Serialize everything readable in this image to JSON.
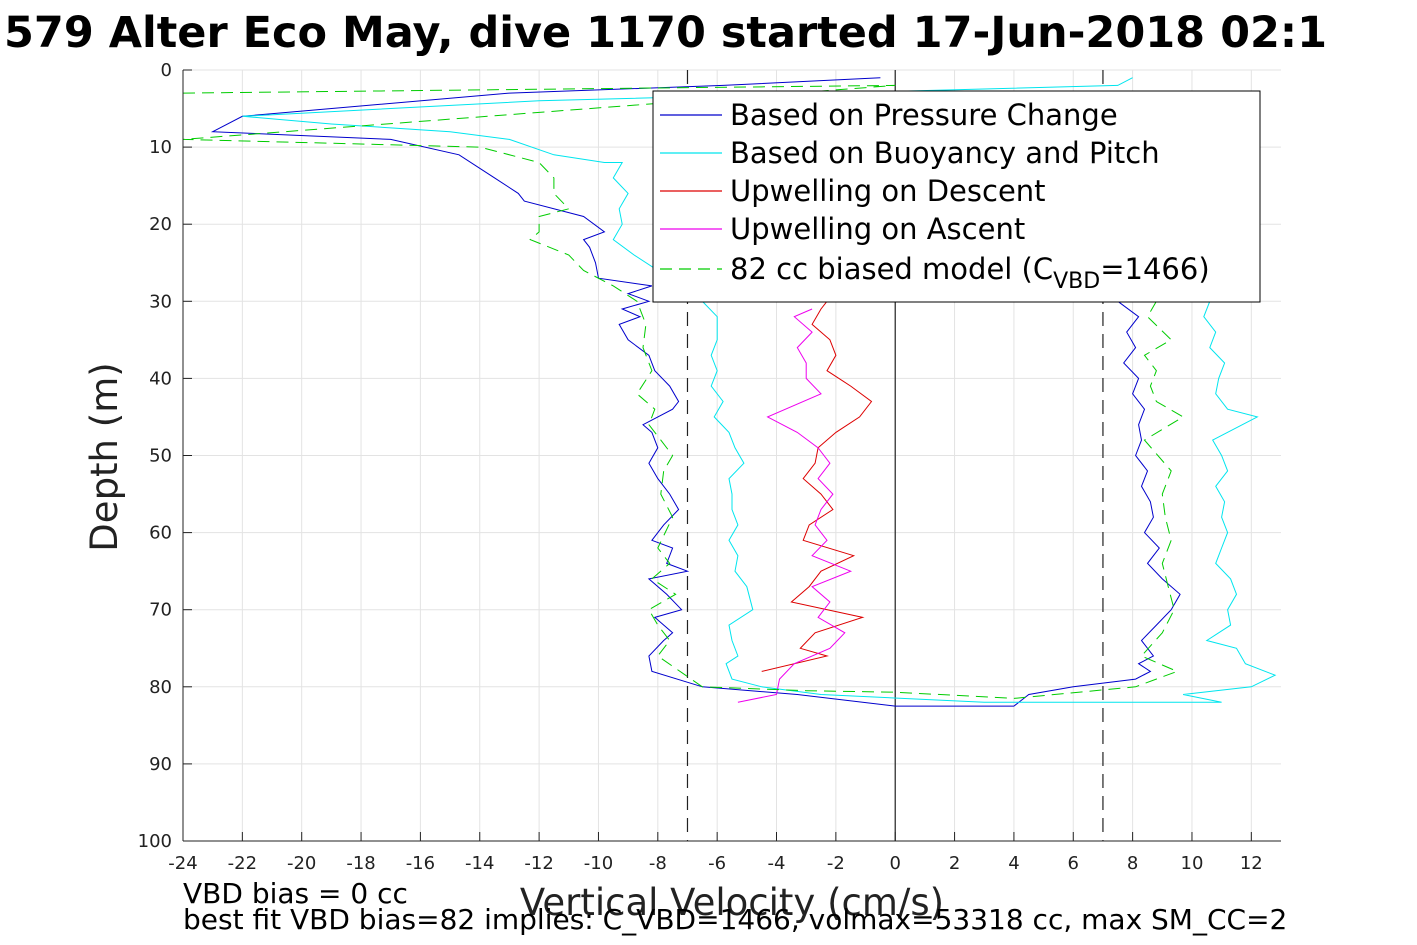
{
  "chart_data": {
    "type": "line",
    "title": "579 Alter Eco May, dive 1170 started 17-Jun-2018 02:1",
    "xlabel": "Vertical Velocity (cm/s)",
    "ylabel": "Depth (m)",
    "xlim": [
      -24,
      13
    ],
    "ylim": [
      0,
      100
    ],
    "y_reversed": true,
    "grid": true,
    "legend_position": "top-right",
    "xticks": [
      "-24",
      "-22",
      "-20",
      "-18",
      "-16",
      "-14",
      "-12",
      "-10",
      "-8",
      "-6",
      "-4",
      "-2",
      "0",
      "2",
      "4",
      "6",
      "8",
      "10",
      "12"
    ],
    "yticks": [
      "0",
      "10",
      "20",
      "30",
      "40",
      "50",
      "60",
      "70",
      "80",
      "90",
      "100"
    ],
    "reference_lines": [
      {
        "x": 0,
        "style": "solid"
      },
      {
        "x": -7,
        "style": "dashed"
      },
      {
        "x": 7,
        "style": "dashed"
      }
    ],
    "legend": {
      "entries": [
        {
          "label": "Based on Pressure Change",
          "color": "#0000cc",
          "style": "solid"
        },
        {
          "label": "Based on Buoyancy and Pitch",
          "color": "#00e5ee",
          "style": "solid"
        },
        {
          "label": "Upwelling on Descent",
          "color": "#dd0000",
          "style": "solid"
        },
        {
          "label": "Upwelling on Ascent",
          "color": "#ee00ee",
          "style": "solid"
        },
        {
          "label_main": "82 cc biased model (C",
          "label_sub": "VBD",
          "label_end": "=1466)",
          "color": "#00cc00",
          "style": "dashed"
        }
      ]
    },
    "series": [
      {
        "name": "Based on Pressure Change",
        "color": "#0000cc",
        "dash": false,
        "points": [
          [
            -0.5,
            1
          ],
          [
            -5.8,
            2
          ],
          [
            -13,
            3
          ],
          [
            -22,
            6
          ],
          [
            -23,
            8
          ],
          [
            -17,
            9
          ],
          [
            -14.7,
            11
          ],
          [
            -13.5,
            14
          ],
          [
            -12.7,
            16
          ],
          [
            -12.5,
            17
          ],
          [
            -10.5,
            19
          ],
          [
            -9.8,
            21
          ],
          [
            -10.5,
            22
          ],
          [
            -10.3,
            23
          ],
          [
            -10.1,
            25
          ],
          [
            -10,
            27
          ],
          [
            -8.2,
            28
          ],
          [
            -9,
            29
          ],
          [
            -8.3,
            30
          ],
          [
            -9.2,
            31
          ],
          [
            -8.6,
            32
          ],
          [
            -9.3,
            33
          ],
          [
            -9,
            35
          ],
          [
            -8.3,
            37
          ],
          [
            -8.1,
            39
          ],
          [
            -7.6,
            41
          ],
          [
            -7.3,
            43
          ],
          [
            -7.5,
            44
          ],
          [
            -8.5,
            46
          ],
          [
            -8.2,
            47
          ],
          [
            -8,
            49
          ],
          [
            -8.3,
            51
          ],
          [
            -8,
            53
          ],
          [
            -7.6,
            55
          ],
          [
            -7.3,
            57
          ],
          [
            -7.8,
            59
          ],
          [
            -8.2,
            61
          ],
          [
            -7.5,
            62
          ],
          [
            -7.7,
            64
          ],
          [
            -7,
            65
          ],
          [
            -8.3,
            66
          ],
          [
            -7.7,
            68
          ],
          [
            -7.2,
            70
          ],
          [
            -8.1,
            71
          ],
          [
            -7.5,
            73
          ],
          [
            -7.8,
            74
          ],
          [
            -8.3,
            76
          ],
          [
            -8.2,
            78
          ],
          [
            -6.5,
            80
          ],
          [
            -3.3,
            81
          ],
          [
            0,
            82.5
          ],
          [
            4,
            82.5
          ],
          [
            4.5,
            81
          ],
          [
            6,
            80
          ],
          [
            8.1,
            79
          ],
          [
            8.6,
            78
          ],
          [
            8.2,
            77
          ],
          [
            8.7,
            76
          ],
          [
            8.3,
            74
          ],
          [
            8.8,
            72
          ],
          [
            9.3,
            70
          ],
          [
            9.6,
            68
          ],
          [
            9,
            66
          ],
          [
            8.5,
            64
          ],
          [
            8.9,
            62
          ],
          [
            8.4,
            60
          ],
          [
            8.7,
            58
          ],
          [
            8.6,
            56
          ],
          [
            8.3,
            54
          ],
          [
            8.5,
            52
          ],
          [
            8.1,
            50
          ],
          [
            8.3,
            48
          ],
          [
            8.2,
            46
          ],
          [
            8.4,
            44
          ],
          [
            8,
            42
          ],
          [
            8.2,
            40
          ],
          [
            7.7,
            38
          ],
          [
            8.1,
            36
          ],
          [
            7.8,
            34
          ],
          [
            8.2,
            32
          ],
          [
            7.5,
            30
          ]
        ]
      },
      {
        "name": "Based on Buoyancy and Pitch",
        "color": "#00e5ee",
        "dash": false,
        "points": [
          [
            8,
            1
          ],
          [
            7.5,
            2
          ],
          [
            -12,
            4
          ],
          [
            -22,
            6
          ],
          [
            -19,
            7
          ],
          [
            -15,
            8
          ],
          [
            -13,
            9
          ],
          [
            -11.5,
            11
          ],
          [
            -9.8,
            12
          ],
          [
            -9.2,
            12
          ],
          [
            -9.5,
            14
          ],
          [
            -9,
            16
          ],
          [
            -9.3,
            18
          ],
          [
            -9.2,
            20
          ],
          [
            -9.5,
            22
          ],
          [
            -8.8,
            24
          ],
          [
            -7.6,
            27
          ],
          [
            -6.5,
            30
          ],
          [
            -6,
            32
          ],
          [
            -6,
            35
          ],
          [
            -6.2,
            37
          ],
          [
            -6,
            39
          ],
          [
            -6.2,
            41
          ],
          [
            -5.8,
            43
          ],
          [
            -6.1,
            45
          ],
          [
            -5.6,
            47
          ],
          [
            -5.4,
            49
          ],
          [
            -5.1,
            51
          ],
          [
            -5.6,
            53
          ],
          [
            -5.5,
            55
          ],
          [
            -5.5,
            57
          ],
          [
            -5.3,
            59
          ],
          [
            -5.6,
            61
          ],
          [
            -5.3,
            63
          ],
          [
            -5.4,
            65
          ],
          [
            -5,
            67
          ],
          [
            -4.8,
            70
          ],
          [
            -5.6,
            72
          ],
          [
            -5.5,
            74
          ],
          [
            -5.3,
            76
          ],
          [
            -5.7,
            77
          ],
          [
            -5.5,
            79
          ],
          [
            -4.5,
            80
          ],
          [
            -2.5,
            81
          ],
          [
            3,
            82
          ],
          [
            11,
            82
          ],
          [
            9.7,
            81
          ],
          [
            12,
            80
          ],
          [
            12.8,
            78.5
          ],
          [
            11.8,
            77
          ],
          [
            11.5,
            75
          ],
          [
            10.5,
            74
          ],
          [
            11.3,
            72
          ],
          [
            11.2,
            70
          ],
          [
            11.5,
            68
          ],
          [
            11.3,
            66
          ],
          [
            10.8,
            64
          ],
          [
            11,
            62
          ],
          [
            11.2,
            60
          ],
          [
            11,
            58
          ],
          [
            11.1,
            56
          ],
          [
            10.8,
            54
          ],
          [
            11.2,
            52
          ],
          [
            11,
            50
          ],
          [
            10.7,
            48
          ],
          [
            12.2,
            45
          ],
          [
            11.2,
            44
          ],
          [
            10.8,
            42
          ],
          [
            10.9,
            40
          ],
          [
            11.1,
            38
          ],
          [
            10.6,
            36
          ],
          [
            10.8,
            34
          ],
          [
            10.4,
            32
          ],
          [
            10.6,
            30
          ]
        ]
      },
      {
        "name": "Upwelling on Descent",
        "color": "#dd0000",
        "dash": false,
        "points": [
          [
            -2.3,
            30
          ],
          [
            -2.5,
            31
          ],
          [
            -2.8,
            33
          ],
          [
            -2.2,
            35
          ],
          [
            -2,
            37
          ],
          [
            -2.3,
            39
          ],
          [
            -1.5,
            41
          ],
          [
            -0.8,
            43
          ],
          [
            -1.2,
            45
          ],
          [
            -2,
            47
          ],
          [
            -2.6,
            49
          ],
          [
            -2.7,
            51
          ],
          [
            -3.1,
            53
          ],
          [
            -2.5,
            55
          ],
          [
            -2.1,
            57
          ],
          [
            -2.9,
            59
          ],
          [
            -3.1,
            61
          ],
          [
            -1.4,
            63
          ],
          [
            -2.5,
            65
          ],
          [
            -2.9,
            67
          ],
          [
            -3.5,
            69
          ],
          [
            -1.1,
            71
          ],
          [
            -2.7,
            73
          ],
          [
            -3.2,
            75
          ],
          [
            -2.3,
            76
          ],
          [
            -4.5,
            78
          ]
        ]
      },
      {
        "name": "Upwelling on Ascent",
        "color": "#ee00ee",
        "dash": false,
        "points": [
          [
            -2.8,
            31
          ],
          [
            -3.4,
            32
          ],
          [
            -2.8,
            34
          ],
          [
            -3.3,
            36
          ],
          [
            -3,
            38
          ],
          [
            -3,
            40
          ],
          [
            -2.5,
            42
          ],
          [
            -4.3,
            45
          ],
          [
            -3.3,
            47
          ],
          [
            -2.6,
            49
          ],
          [
            -2.2,
            51
          ],
          [
            -2.6,
            53
          ],
          [
            -2.1,
            55
          ],
          [
            -2.5,
            57
          ],
          [
            -2.7,
            59
          ],
          [
            -2.3,
            61
          ],
          [
            -2.8,
            63
          ],
          [
            -1.5,
            65
          ],
          [
            -2.8,
            67
          ],
          [
            -2.2,
            69
          ],
          [
            -2.6,
            71
          ],
          [
            -1.7,
            73
          ],
          [
            -2.2,
            75
          ],
          [
            -3.4,
            77
          ],
          [
            -3.9,
            79
          ],
          [
            -4,
            81
          ],
          [
            -5.3,
            82
          ]
        ]
      },
      {
        "name": "82 cc biased model (CVBD=1466)",
        "color": "#00cc00",
        "dash": true,
        "points": [
          [
            -24,
            3
          ],
          [
            0,
            2
          ],
          [
            -24,
            9
          ],
          [
            -14,
            10
          ],
          [
            -12,
            12
          ],
          [
            -11.5,
            14
          ],
          [
            -11.5,
            16
          ],
          [
            -11,
            18
          ],
          [
            -12,
            19
          ],
          [
            -12,
            21
          ],
          [
            -12.3,
            22
          ],
          [
            -11,
            24
          ],
          [
            -10.5,
            26
          ],
          [
            -9.5,
            28
          ],
          [
            -8.7,
            30
          ],
          [
            -8.4,
            33
          ],
          [
            -8.5,
            36
          ],
          [
            -8.2,
            39
          ],
          [
            -8.7,
            42
          ],
          [
            -8.1,
            44
          ],
          [
            -8.3,
            46
          ],
          [
            -7.9,
            48
          ],
          [
            -7.5,
            50
          ],
          [
            -7.8,
            52
          ],
          [
            -7.9,
            55
          ],
          [
            -7.5,
            58
          ],
          [
            -8,
            62
          ],
          [
            -7.6,
            64
          ],
          [
            -8.2,
            66
          ],
          [
            -7.4,
            68
          ],
          [
            -8.3,
            70
          ],
          [
            -8,
            72
          ],
          [
            -7.6,
            74
          ],
          [
            -8,
            76
          ],
          [
            -6.5,
            80
          ],
          [
            -3,
            80.5
          ],
          [
            0,
            80.7
          ],
          [
            4,
            81.5
          ],
          [
            8.1,
            80
          ],
          [
            9.5,
            78
          ],
          [
            8.3,
            76
          ],
          [
            9,
            73
          ],
          [
            9.4,
            70
          ],
          [
            9.2,
            67
          ],
          [
            9,
            64
          ],
          [
            9.3,
            61
          ],
          [
            9.1,
            58
          ],
          [
            9,
            55
          ],
          [
            9.3,
            52
          ],
          [
            8.4,
            48
          ],
          [
            9.7,
            45
          ],
          [
            8.8,
            43
          ],
          [
            8.6,
            41
          ],
          [
            8.8,
            39
          ],
          [
            8.4,
            37
          ],
          [
            9.3,
            35
          ],
          [
            8.5,
            32
          ],
          [
            8.8,
            30
          ]
        ]
      }
    ],
    "annotations": [
      "VBD bias = 0 cc",
      "best fit VBD bias=82 implies: C_VBD=1466, volmax=53318 cc, max SM_CC=2"
    ]
  }
}
